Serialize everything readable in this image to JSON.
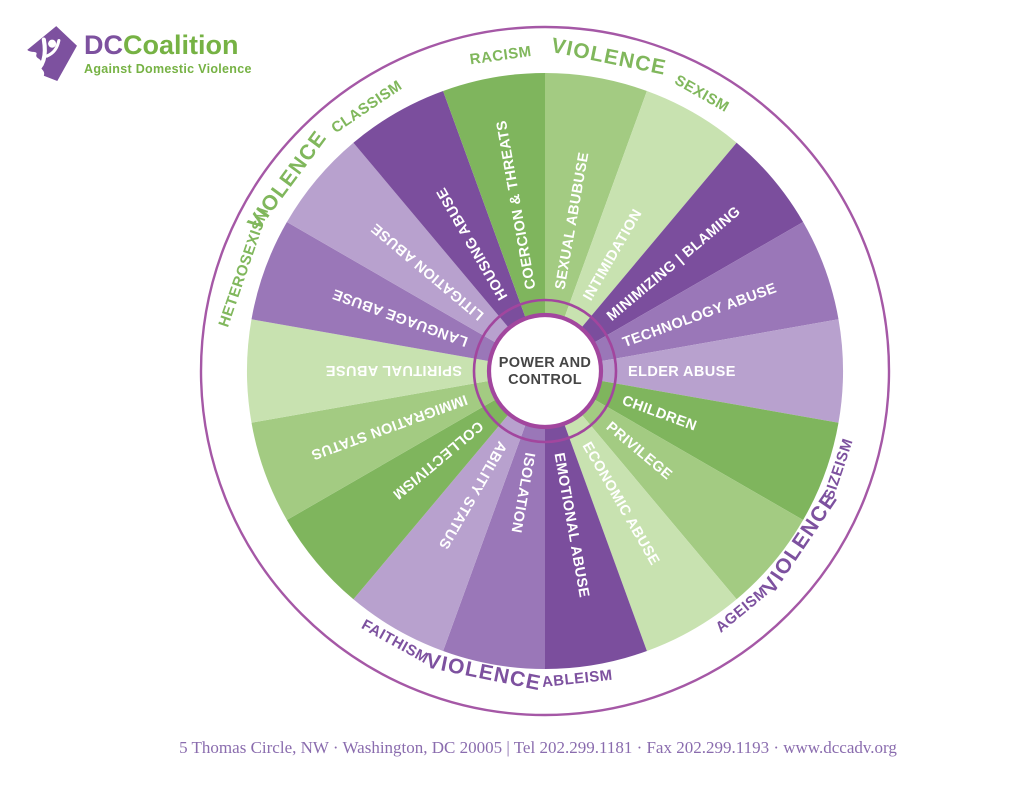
{
  "logo": {
    "brand_dc": "DC",
    "brand_rest": "Coalition",
    "subtitle": "Against Domestic Violence"
  },
  "wheel": {
    "center_label_line1": "POWER AND",
    "center_label_line2": "CONTROL",
    "wedges": [
      {
        "label": "SEXUAL ABUBUSE",
        "shade": "green_mid",
        "start": 0
      },
      {
        "label": "INTIMIDATION",
        "shade": "green_light",
        "start": 20
      },
      {
        "label": "MINIMIZING | BLAMING",
        "shade": "purple_dark",
        "start": 40
      },
      {
        "label": "TECHNOLOGY ABUSE",
        "shade": "purple_mid",
        "start": 60
      },
      {
        "label": "ELDER ABUSE",
        "shade": "purple_light",
        "start": 80
      },
      {
        "label": "CHILDREN",
        "shade": "green_dark",
        "start": 100
      },
      {
        "label": "PRIVILEGE",
        "shade": "green_mid",
        "start": 120
      },
      {
        "label": "ECONOMIC ABUSE",
        "shade": "green_light",
        "start": 140
      },
      {
        "label": "EMOTIONAL ABUSE",
        "shade": "purple_dark",
        "start": 160
      },
      {
        "label": "ISOLATION",
        "shade": "purple_mid",
        "start": 180
      },
      {
        "label": "ABILITY STATUS",
        "shade": "purple_light",
        "start": 200
      },
      {
        "label": "COLLECTIVISM",
        "shade": "green_dark",
        "start": 220
      },
      {
        "label": "IMMIGRATION STATUS",
        "shade": "green_mid",
        "start": 240
      },
      {
        "label": "SPIRITUAL ABUSE",
        "shade": "green_light",
        "start": 260
      },
      {
        "label": "LANGUAGE ABUSE",
        "shade": "purple_mid",
        "start": 280
      },
      {
        "label": "LITIGATION ABUSE",
        "shade": "purple_light",
        "start": 300
      },
      {
        "label": "HOUSING ABUSE",
        "shade": "purple_dark",
        "start": 320
      },
      {
        "label": "COERCION & THREATS",
        "shade": "green_dark",
        "start": 340
      }
    ],
    "outer_labels": [
      {
        "text": "RACISM",
        "angle": 352,
        "color": "green",
        "size": 15
      },
      {
        "text": "VIOLENCE",
        "angle": 11.5,
        "color": "green",
        "size": 21
      },
      {
        "text": "SEXISM",
        "angle": 29.5,
        "color": "green",
        "size": 15
      },
      {
        "text": "SIZEISM",
        "angle": 108.5,
        "color": "purple",
        "size": 15
      },
      {
        "text": "VIOLENCE",
        "angle": 124,
        "color": "purple",
        "size": 21
      },
      {
        "text": "AGEISM",
        "angle": 140.5,
        "color": "purple",
        "size": 15
      },
      {
        "text": "ABLEISM",
        "angle": 174,
        "color": "purple",
        "size": 15
      },
      {
        "text": "VIOLENCE",
        "angle": 191.5,
        "color": "purple",
        "size": 21
      },
      {
        "text": "FAITHISM",
        "angle": 209,
        "color": "purple",
        "size": 15
      },
      {
        "text": "HETEROSEXISM",
        "angle": 289,
        "color": "green",
        "size": 15
      },
      {
        "text": "VIOLENCE",
        "angle": 306.5,
        "color": "green",
        "size": 21
      },
      {
        "text": "CLASSISM",
        "angle": 326,
        "color": "green",
        "size": 15
      }
    ]
  },
  "footer": {
    "contact_line": "5 Thomas Circle, NW · Washington, DC 20005 | Tel 202.299.1181 · Fax 202.299.1193 · www.dccadv.org"
  },
  "colors": {
    "green_dark": "#7fb55d",
    "green_mid": "#a3cb82",
    "green_light": "#c8e2b0",
    "purple_dark": "#7b4e9d",
    "purple_mid": "#9a77b8",
    "purple_light": "#b8a1ce",
    "ring_magenta": "#a2469e",
    "outer_circle": "#a558a6",
    "label_green": "#80b75c",
    "label_purple": "#7d519f",
    "center_text": "#454545",
    "footer_text": "#8a6cae",
    "logo_purple": "#7d519f",
    "logo_green": "#76b244"
  }
}
